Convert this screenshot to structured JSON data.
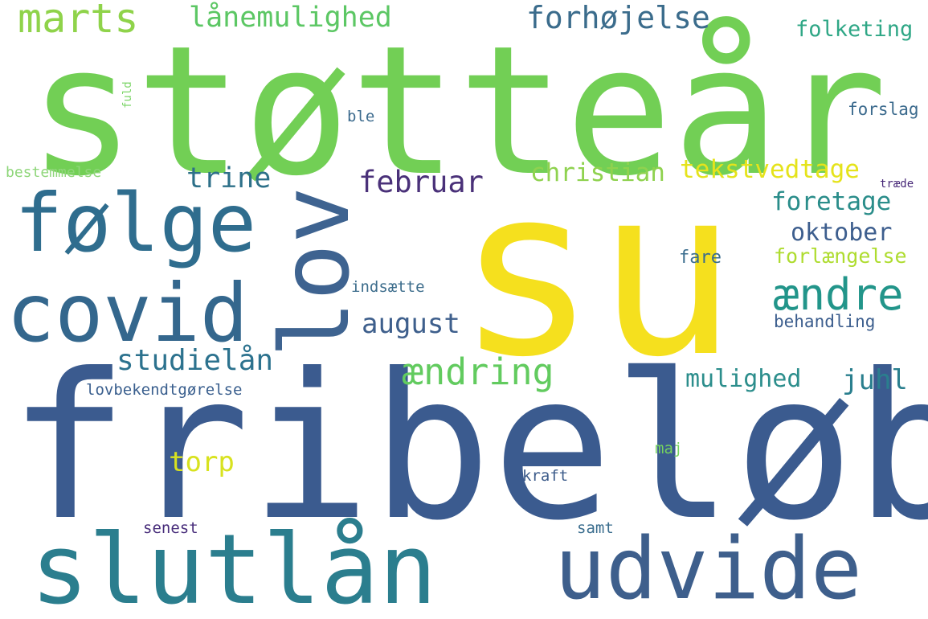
{
  "palette": {
    "background": "#ffffff",
    "dark_blue": "#3b5b8f",
    "blue": "#3e6a8c",
    "teal": "#2b7e8e",
    "teal_green": "#22998a",
    "green": "#4dbf6b",
    "light_green": "#7fd35a",
    "lime": "#b8de29",
    "yellow": "#f2e21e",
    "purple": "#4a2f7a"
  },
  "words": [
    {
      "id": "w-stottear",
      "text": "støtteår"
    },
    {
      "id": "w-su",
      "text": "su"
    },
    {
      "id": "w-fribelob",
      "text": "fribeløb"
    },
    {
      "id": "w-lov",
      "text": "lov"
    },
    {
      "id": "w-folge",
      "text": "følge"
    },
    {
      "id": "w-covid",
      "text": "covid"
    },
    {
      "id": "w-slutlan",
      "text": "slutlån"
    },
    {
      "id": "w-udvide",
      "text": "udvide"
    },
    {
      "id": "w-marts",
      "text": "marts"
    },
    {
      "id": "w-lanemulighed",
      "text": "lånemulighed"
    },
    {
      "id": "w-forhojelse",
      "text": "forhøjelse"
    },
    {
      "id": "w-folketing",
      "text": "folketing"
    },
    {
      "id": "w-fuld",
      "text": "fuld"
    },
    {
      "id": "w-ble",
      "text": "ble"
    },
    {
      "id": "w-forslag",
      "text": "forslag"
    },
    {
      "id": "w-bestemmelse",
      "text": "bestemmelse"
    },
    {
      "id": "w-trine",
      "text": "trine"
    },
    {
      "id": "w-februar",
      "text": "februar"
    },
    {
      "id": "w-christian",
      "text": "christian"
    },
    {
      "id": "w-tekstvedtage",
      "text": "tekstvedtage"
    },
    {
      "id": "w-traede",
      "text": "træde"
    },
    {
      "id": "w-foretage",
      "text": "foretage"
    },
    {
      "id": "w-oktober",
      "text": "oktober"
    },
    {
      "id": "w-fare",
      "text": "fare"
    },
    {
      "id": "w-forlaengelse",
      "text": "forlængelse"
    },
    {
      "id": "w-indsaette",
      "text": "indsætte"
    },
    {
      "id": "w-aendre",
      "text": "ændre"
    },
    {
      "id": "w-august",
      "text": "august"
    },
    {
      "id": "w-behandling",
      "text": "behandling"
    },
    {
      "id": "w-studielan",
      "text": "studielån"
    },
    {
      "id": "w-aendring",
      "text": "ændring"
    },
    {
      "id": "w-mulighed",
      "text": "mulighed"
    },
    {
      "id": "w-juhl",
      "text": "juhl"
    },
    {
      "id": "w-lovbekendtgorelse",
      "text": "lovbekendtgørelse"
    },
    {
      "id": "w-torp",
      "text": "torp"
    },
    {
      "id": "w-maj",
      "text": "maj"
    },
    {
      "id": "w-kraft",
      "text": "kraft"
    },
    {
      "id": "w-senest",
      "text": "senest"
    },
    {
      "id": "w-samt",
      "text": "samt"
    }
  ]
}
